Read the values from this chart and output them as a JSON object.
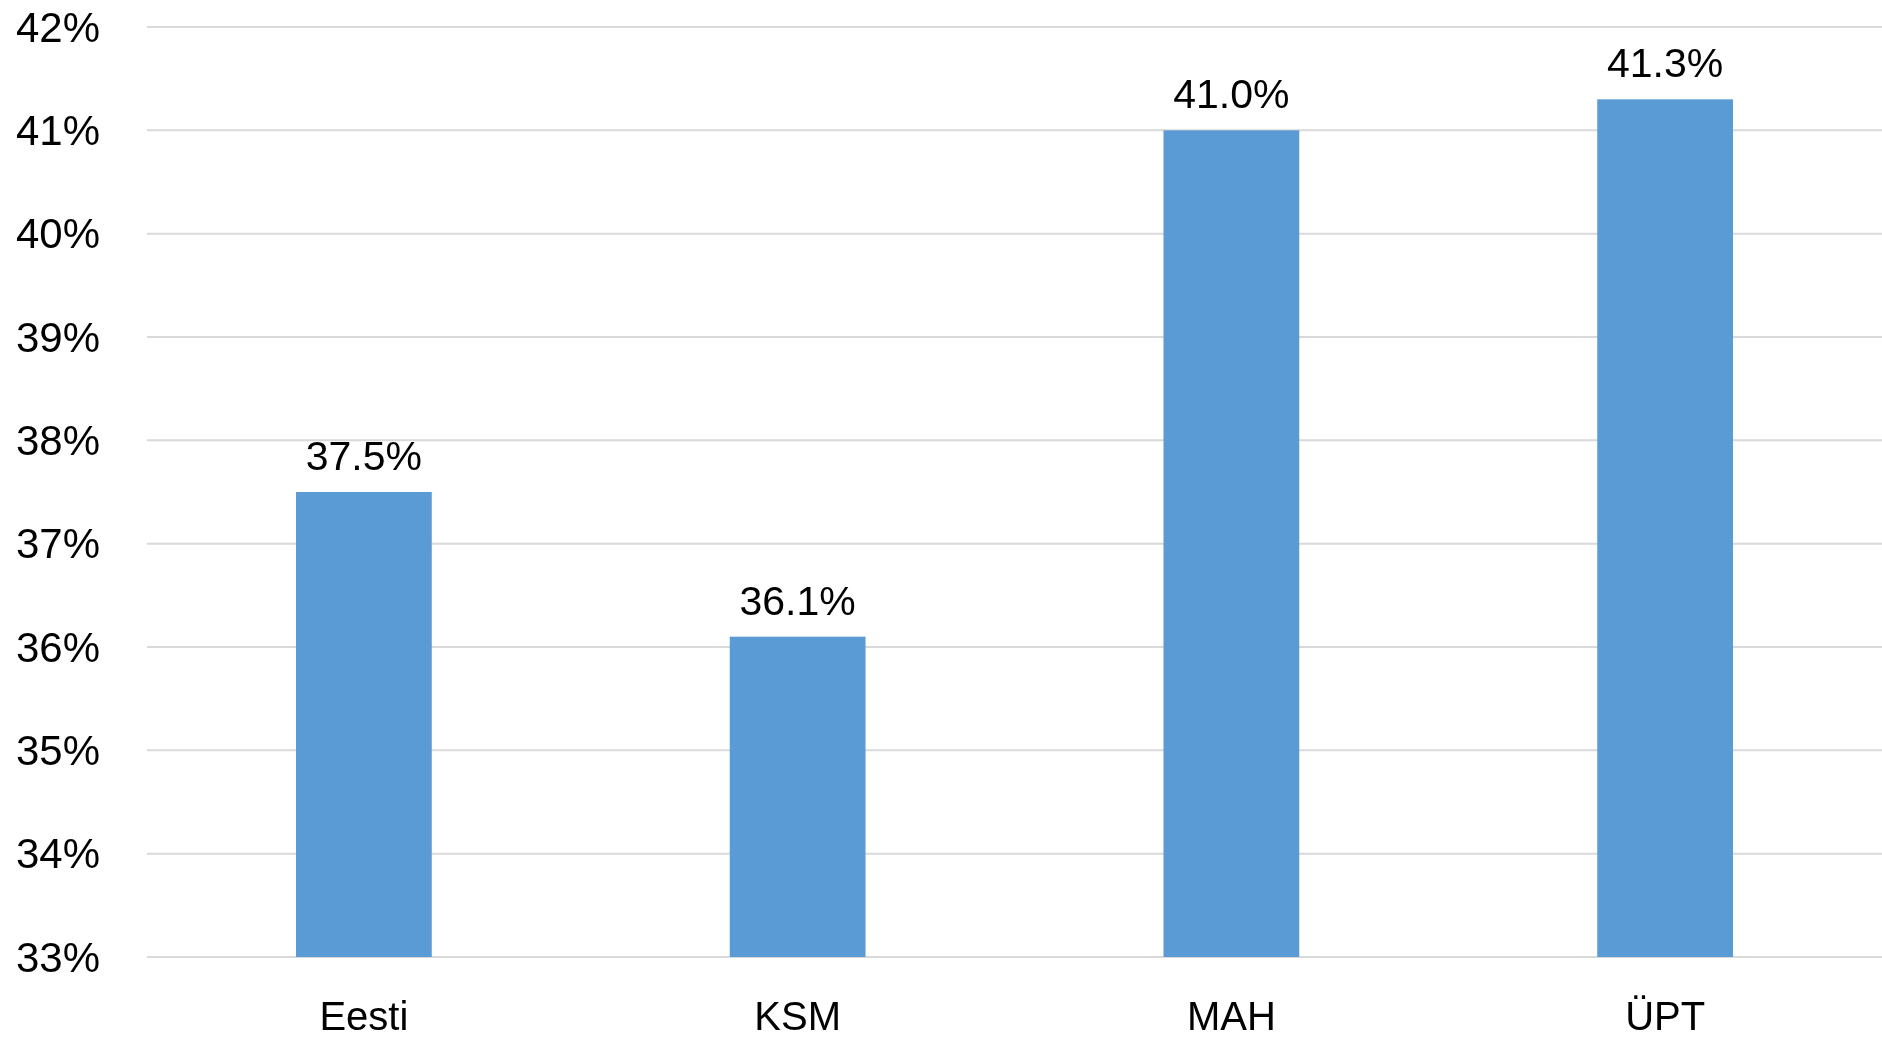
{
  "chart_data": {
    "type": "bar",
    "categories": [
      "Eesti",
      "KSM",
      "MAH",
      "ÜPT"
    ],
    "values": [
      37.5,
      36.1,
      41.0,
      41.3
    ],
    "value_labels": [
      "37.5%",
      "36.1%",
      "41.0%",
      "41.3%"
    ],
    "color": "#5b9bd5",
    "ylim": [
      33,
      42
    ],
    "yticks": [
      {
        "value": 33,
        "label": "33%"
      },
      {
        "value": 34,
        "label": "34%"
      },
      {
        "value": 35,
        "label": "35%"
      },
      {
        "value": 36,
        "label": "36%"
      },
      {
        "value": 37,
        "label": "37%"
      },
      {
        "value": 38,
        "label": "38%"
      },
      {
        "value": 39,
        "label": "39%"
      },
      {
        "value": 40,
        "label": "40%"
      },
      {
        "value": 41,
        "label": "41%"
      },
      {
        "value": 42,
        "label": "42%"
      }
    ],
    "grid": "y"
  }
}
